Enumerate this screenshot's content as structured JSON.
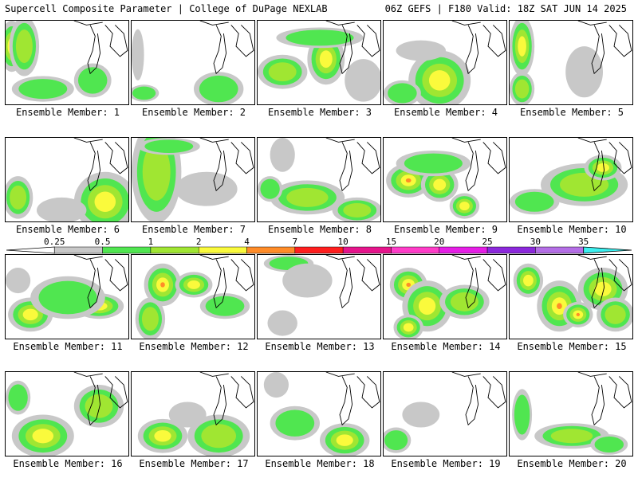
{
  "header": {
    "title_left": "Supercell Composite Parameter | College of DuPage NEXLAB",
    "title_right": "06Z GEFS | F180 Valid: 18Z SAT JUN 14 2025"
  },
  "colorbar": {
    "labels": [
      "0.25",
      "0.5",
      "1",
      "2",
      "4",
      "7",
      "10",
      "15",
      "20",
      "25",
      "30",
      "35"
    ],
    "colors": [
      "#c8c8c8",
      "#50e650",
      "#a0e632",
      "#fafa3c",
      "#ff8c28",
      "#ff1e1e",
      "#e6148c",
      "#ff3cc8",
      "#e61ee6",
      "#8c28dc",
      "#b46ee6",
      "#3cf0f0"
    ]
  },
  "members": [
    {
      "label": "Ensemble Member: 1",
      "blobs": [
        [
          0.05,
          0.3,
          0.1,
          0.3,
          3
        ],
        [
          0.15,
          0.3,
          0.12,
          0.35,
          2
        ],
        [
          0.3,
          0.8,
          0.25,
          0.15,
          1
        ],
        [
          0.7,
          0.7,
          0.15,
          0.2,
          1
        ]
      ]
    },
    {
      "label": "Ensemble Member: 2",
      "blobs": [
        [
          0.7,
          0.8,
          0.2,
          0.2,
          1
        ],
        [
          0.1,
          0.85,
          0.12,
          0.1,
          1
        ],
        [
          0.05,
          0.4,
          0.05,
          0.3,
          0
        ]
      ]
    },
    {
      "label": "Ensemble Member: 3",
      "blobs": [
        [
          0.55,
          0.45,
          0.15,
          0.3,
          3
        ],
        [
          0.2,
          0.6,
          0.2,
          0.2,
          2
        ],
        [
          0.5,
          0.2,
          0.35,
          0.12,
          1
        ],
        [
          0.85,
          0.7,
          0.15,
          0.25,
          0
        ]
      ]
    },
    {
      "label": "Ensemble Member: 4",
      "blobs": [
        [
          0.45,
          0.7,
          0.25,
          0.35,
          3
        ],
        [
          0.15,
          0.85,
          0.15,
          0.15,
          1
        ],
        [
          0.3,
          0.35,
          0.2,
          0.12,
          0
        ]
      ]
    },
    {
      "label": "Ensemble Member: 5",
      "blobs": [
        [
          0.1,
          0.3,
          0.1,
          0.35,
          3
        ],
        [
          0.1,
          0.8,
          0.1,
          0.2,
          2
        ],
        [
          0.6,
          0.6,
          0.15,
          0.3,
          0
        ]
      ]
    },
    {
      "label": "Ensemble Member: 6",
      "blobs": [
        [
          0.1,
          0.7,
          0.12,
          0.25,
          2
        ],
        [
          0.8,
          0.75,
          0.25,
          0.35,
          3
        ],
        [
          0.45,
          0.85,
          0.2,
          0.15,
          0
        ]
      ]
    },
    {
      "label": "Ensemble Member: 7",
      "blobs": [
        [
          0.2,
          0.4,
          0.2,
          0.6,
          2
        ],
        [
          0.3,
          0.1,
          0.25,
          0.1,
          1
        ],
        [
          0.6,
          0.6,
          0.25,
          0.2,
          0
        ]
      ]
    },
    {
      "label": "Ensemble Member: 8",
      "blobs": [
        [
          0.4,
          0.7,
          0.3,
          0.2,
          2
        ],
        [
          0.8,
          0.85,
          0.2,
          0.15,
          2
        ],
        [
          0.1,
          0.6,
          0.1,
          0.15,
          1
        ],
        [
          0.2,
          0.2,
          0.1,
          0.2,
          0
        ]
      ]
    },
    {
      "label": "Ensemble Member: 9",
      "blobs": [
        [
          0.2,
          0.5,
          0.18,
          0.2,
          4
        ],
        [
          0.45,
          0.55,
          0.15,
          0.2,
          3
        ],
        [
          0.65,
          0.8,
          0.12,
          0.15,
          3
        ],
        [
          0.4,
          0.3,
          0.3,
          0.15,
          1
        ]
      ]
    },
    {
      "label": "Ensemble Member: 10",
      "blobs": [
        [
          0.6,
          0.55,
          0.35,
          0.25,
          2
        ],
        [
          0.75,
          0.35,
          0.15,
          0.15,
          3
        ],
        [
          0.2,
          0.75,
          0.2,
          0.15,
          1
        ]
      ]
    },
    {
      "label": "Ensemble Member: 11",
      "blobs": [
        [
          0.2,
          0.7,
          0.18,
          0.2,
          3
        ],
        [
          0.75,
          0.6,
          0.2,
          0.15,
          3
        ],
        [
          0.5,
          0.5,
          0.3,
          0.25,
          1
        ],
        [
          0.1,
          0.3,
          0.1,
          0.15,
          0
        ]
      ]
    },
    {
      "label": "Ensemble Member: 12",
      "blobs": [
        [
          0.25,
          0.35,
          0.15,
          0.25,
          4
        ],
        [
          0.5,
          0.35,
          0.15,
          0.15,
          3
        ],
        [
          0.15,
          0.75,
          0.12,
          0.25,
          2
        ],
        [
          0.75,
          0.6,
          0.2,
          0.15,
          1
        ]
      ]
    },
    {
      "label": "Ensemble Member: 13",
      "blobs": [
        [
          0.25,
          0.1,
          0.2,
          0.1,
          1
        ],
        [
          0.4,
          0.3,
          0.2,
          0.2,
          0
        ],
        [
          0.2,
          0.8,
          0.12,
          0.15,
          0
        ]
      ]
    },
    {
      "label": "Ensemble Member: 14",
      "blobs": [
        [
          0.2,
          0.35,
          0.15,
          0.2,
          4
        ],
        [
          0.35,
          0.6,
          0.2,
          0.3,
          3
        ],
        [
          0.65,
          0.55,
          0.2,
          0.2,
          2
        ],
        [
          0.2,
          0.85,
          0.12,
          0.15,
          3
        ]
      ]
    },
    {
      "label": "Ensemble Member: 15",
      "blobs": [
        [
          0.15,
          0.3,
          0.12,
          0.2,
          3
        ],
        [
          0.4,
          0.6,
          0.18,
          0.3,
          4
        ],
        [
          0.55,
          0.7,
          0.12,
          0.15,
          4
        ],
        [
          0.75,
          0.4,
          0.2,
          0.25,
          3
        ],
        [
          0.85,
          0.7,
          0.15,
          0.2,
          2
        ]
      ]
    },
    {
      "label": "Ensemble Member: 16",
      "blobs": [
        [
          0.3,
          0.75,
          0.25,
          0.25,
          3
        ],
        [
          0.75,
          0.4,
          0.2,
          0.25,
          2
        ],
        [
          0.1,
          0.3,
          0.1,
          0.2,
          1
        ]
      ]
    },
    {
      "label": "Ensemble Member: 17",
      "blobs": [
        [
          0.25,
          0.75,
          0.2,
          0.2,
          3
        ],
        [
          0.7,
          0.75,
          0.25,
          0.25,
          2
        ],
        [
          0.45,
          0.5,
          0.15,
          0.15,
          0
        ]
      ]
    },
    {
      "label": "Ensemble Member: 18",
      "blobs": [
        [
          0.7,
          0.8,
          0.2,
          0.2,
          3
        ],
        [
          0.3,
          0.6,
          0.2,
          0.2,
          1
        ],
        [
          0.15,
          0.15,
          0.1,
          0.15,
          0
        ]
      ]
    },
    {
      "label": "Ensemble Member: 19",
      "blobs": [
        [
          0.1,
          0.8,
          0.12,
          0.15,
          1
        ],
        [
          0.3,
          0.5,
          0.15,
          0.15,
          0
        ]
      ]
    },
    {
      "label": "Ensemble Member: 20",
      "blobs": [
        [
          0.5,
          0.75,
          0.3,
          0.15,
          2
        ],
        [
          0.1,
          0.5,
          0.08,
          0.3,
          1
        ],
        [
          0.8,
          0.85,
          0.15,
          0.12,
          1
        ]
      ]
    }
  ]
}
